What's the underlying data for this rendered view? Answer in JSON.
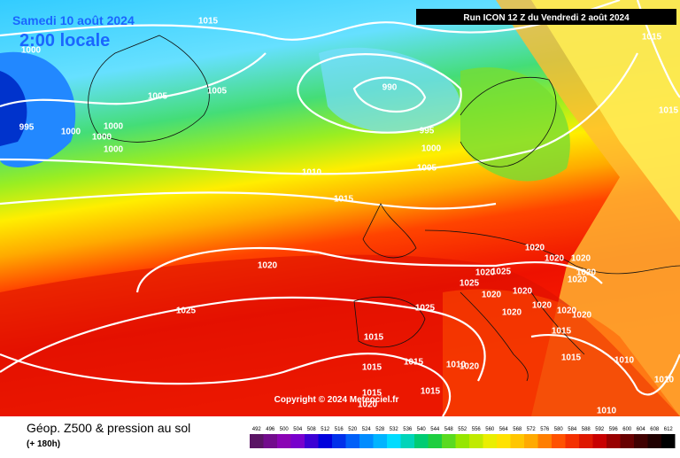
{
  "header": {
    "valid": "Samedi 10 août 2024",
    "local_time": "2:00 locale",
    "run": "Run ICON 12 Z du Vendredi 2 août 2024",
    "copyright": "Copyright © 2024 Meteociel.fr"
  },
  "footer": {
    "title": "Géop. Z500 & pression au sol",
    "lead": "(+ 180h)"
  },
  "legend": {
    "levels": [
      492,
      496,
      500,
      504,
      508,
      512,
      516,
      520,
      524,
      528,
      532,
      536,
      540,
      544,
      548,
      552,
      556,
      560,
      564,
      568,
      572,
      576,
      580,
      584,
      588,
      592,
      596,
      600,
      604,
      608,
      612
    ]
  },
  "isobar_labels": [
    "1015",
    "1000",
    "1005",
    "1005",
    "990",
    "1015",
    "1015",
    "995",
    "1000",
    "1000",
    "1000",
    "1000",
    "995",
    "1000",
    "1005",
    "1010",
    "1015",
    "1020",
    "1025",
    "1020",
    "1020",
    "1020",
    "1025",
    "1020",
    "1025",
    "1020",
    "1020",
    "1020",
    "1020",
    "1025",
    "1020",
    "1020",
    "1020",
    "1020",
    "1015",
    "1015",
    "1015",
    "1010",
    "1015",
    "1015",
    "1010",
    "1020",
    "1015",
    "1015",
    "1010",
    "1010",
    "1020"
  ]
}
